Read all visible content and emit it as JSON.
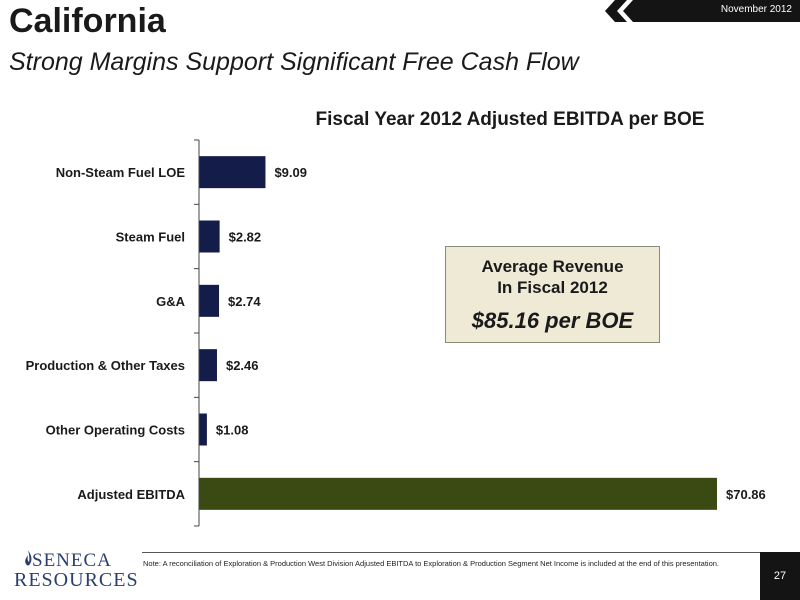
{
  "header": {
    "title": "California",
    "subtitle": "Strong Margins Support Significant Free Cash Flow",
    "date": "November 2012"
  },
  "chart_data": {
    "type": "bar",
    "orientation": "horizontal",
    "title": "Fiscal Year 2012 Adjusted EBITDA per BOE",
    "categories": [
      "Non-Steam Fuel LOE",
      "Steam Fuel",
      "G&A",
      "Production & Other Taxes",
      "Other Operating Costs",
      "Adjusted EBITDA"
    ],
    "values": [
      9.09,
      2.82,
      2.74,
      2.46,
      1.08,
      70.86
    ],
    "labels": [
      "$9.09",
      "$2.82",
      "$2.74",
      "$2.46",
      "$1.08",
      "$70.86"
    ],
    "colors": [
      "#141c4a",
      "#141c4a",
      "#141c4a",
      "#141c4a",
      "#141c4a",
      "#3a4a12"
    ],
    "xlim": [
      0,
      70.86
    ],
    "grid": false,
    "legend": "none"
  },
  "callout": {
    "line1": "Average Revenue",
    "line2": "In Fiscal 2012",
    "value": "$85.16 per BOE"
  },
  "footer": {
    "note": "Note: A reconciliation of Exploration & Production West Division Adjusted EBITDA to Exploration & Production Segment Net Income is included at the end of this presentation.",
    "page": "27",
    "logo_top": "SENECA",
    "logo_bottom": "RESOURCES"
  },
  "colors": {
    "dark_bar": "#141c4a",
    "ebitda_bar": "#3a4a12",
    "callout_bg": "#eeead6"
  }
}
